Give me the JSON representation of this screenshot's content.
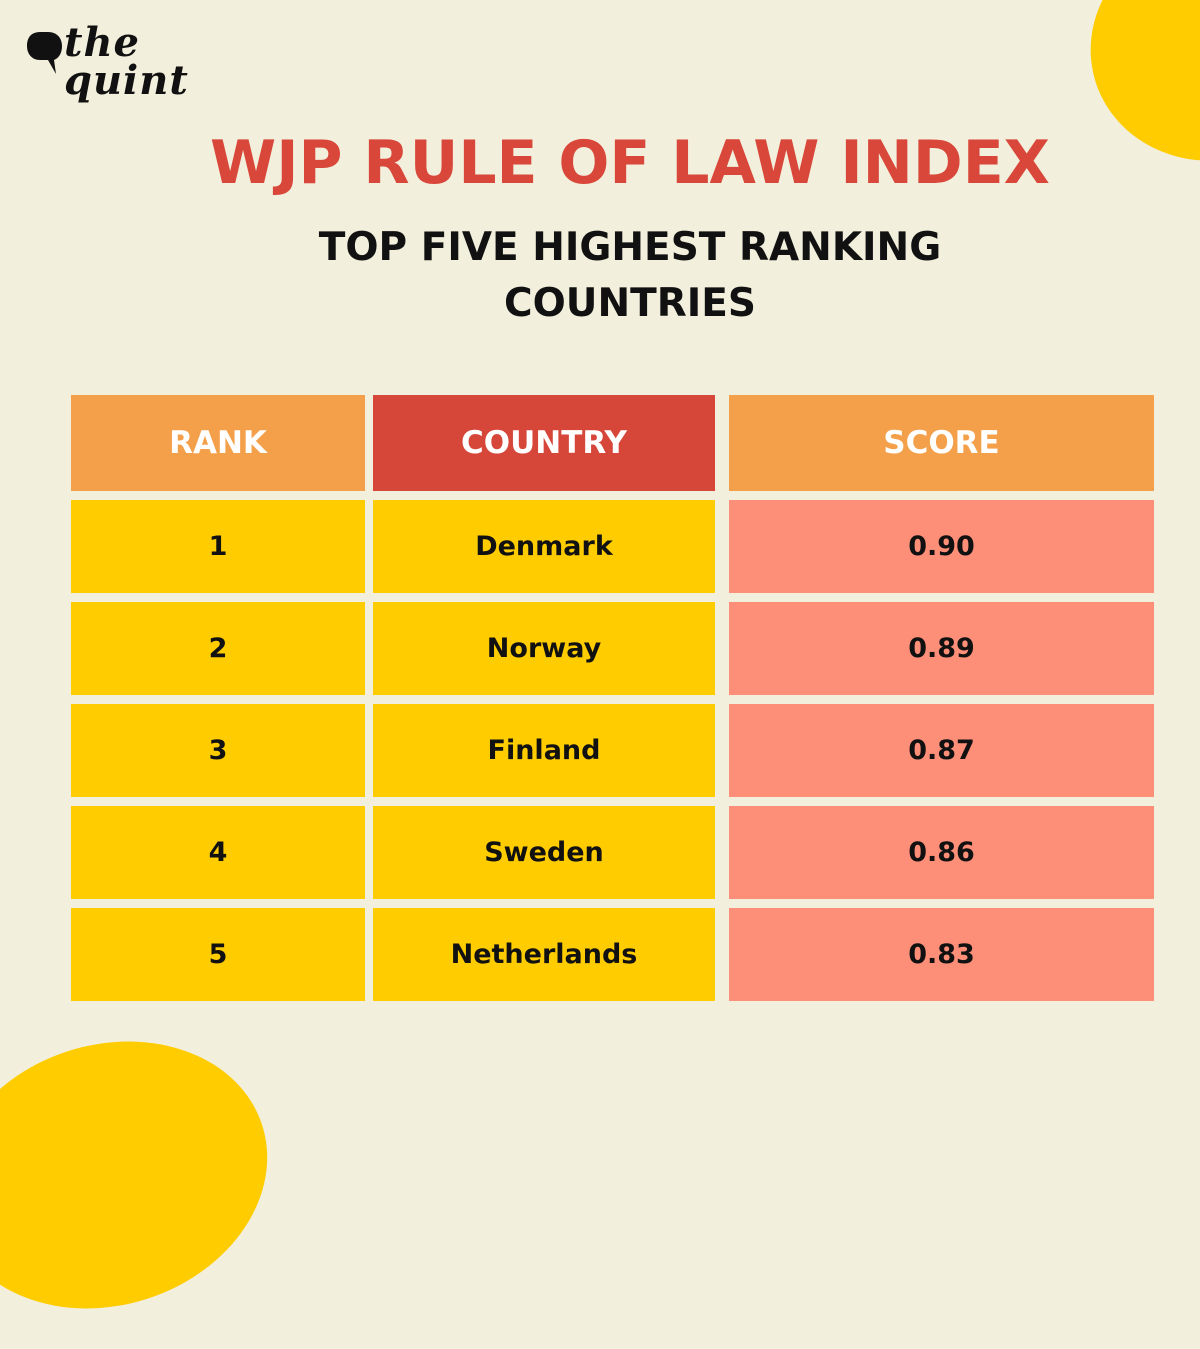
{
  "brand": {
    "logo_text": "the\nquint"
  },
  "colors": {
    "background": "#f2efdc",
    "title": "#d8473a",
    "header_orange": "#f4a04a",
    "header_red": "#d6473a",
    "cell_yellow": "#ffcc00",
    "score_salmon": "#fd8f79"
  },
  "chart_data": {
    "type": "table",
    "title": "WJP RULE OF LAW INDEX",
    "subtitle": "TOP FIVE HIGHEST RANKING COUNTRIES",
    "columns": [
      "RANK",
      "COUNTRY",
      "SCORE"
    ],
    "rows": [
      {
        "rank": "1",
        "country": "Denmark",
        "score": "0.90"
      },
      {
        "rank": "2",
        "country": "Norway",
        "score": "0.89"
      },
      {
        "rank": "3",
        "country": "Finland",
        "score": "0.87"
      },
      {
        "rank": "4",
        "country": "Sweden",
        "score": "0.86"
      },
      {
        "rank": "5",
        "country": "Netherlands",
        "score": "0.83"
      }
    ]
  }
}
